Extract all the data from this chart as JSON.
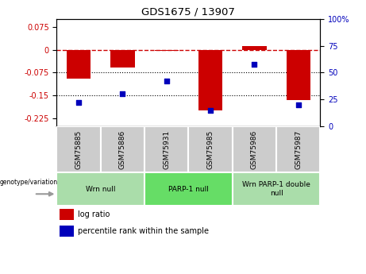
{
  "title": "GDS1675 / 13907",
  "samples": [
    "GSM75885",
    "GSM75886",
    "GSM75931",
    "GSM75985",
    "GSM75986",
    "GSM75987"
  ],
  "log_ratios": [
    -0.095,
    -0.058,
    -0.003,
    -0.2,
    0.013,
    -0.165
  ],
  "percentile_ranks": [
    22,
    30,
    42,
    15,
    58,
    20
  ],
  "ylim_left": [
    -0.25,
    0.1
  ],
  "ylim_right": [
    0,
    100
  ],
  "yticks_left": [
    0.075,
    0,
    -0.075,
    -0.15,
    -0.225
  ],
  "yticks_right": [
    100,
    75,
    50,
    25,
    0
  ],
  "hlines": [
    -0.075,
    -0.15
  ],
  "bar_color": "#cc0000",
  "dot_color": "#0000bb",
  "dashed_line_color": "#cc0000",
  "groups": [
    {
      "label": "Wrn null",
      "start": 0,
      "end": 2,
      "color": "#aaeaaa"
    },
    {
      "label": "PARP-1 null",
      "start": 2,
      "end": 4,
      "color": "#66dd66"
    },
    {
      "label": "Wrn PARP-1 double\nnull",
      "start": 4,
      "end": 6,
      "color": "#aaeaaa"
    }
  ],
  "legend_bar_label": "log ratio",
  "legend_dot_label": "percentile rank within the sample",
  "bar_width": 0.55,
  "background_color": "#ffffff",
  "axis_label_color_left": "#cc0000",
  "axis_label_color_right": "#0000bb",
  "sample_box_color": "#cccccc",
  "group_border_color": "#ffffff",
  "genotype_label": "genotype/variation",
  "arrow_color": "#999999"
}
